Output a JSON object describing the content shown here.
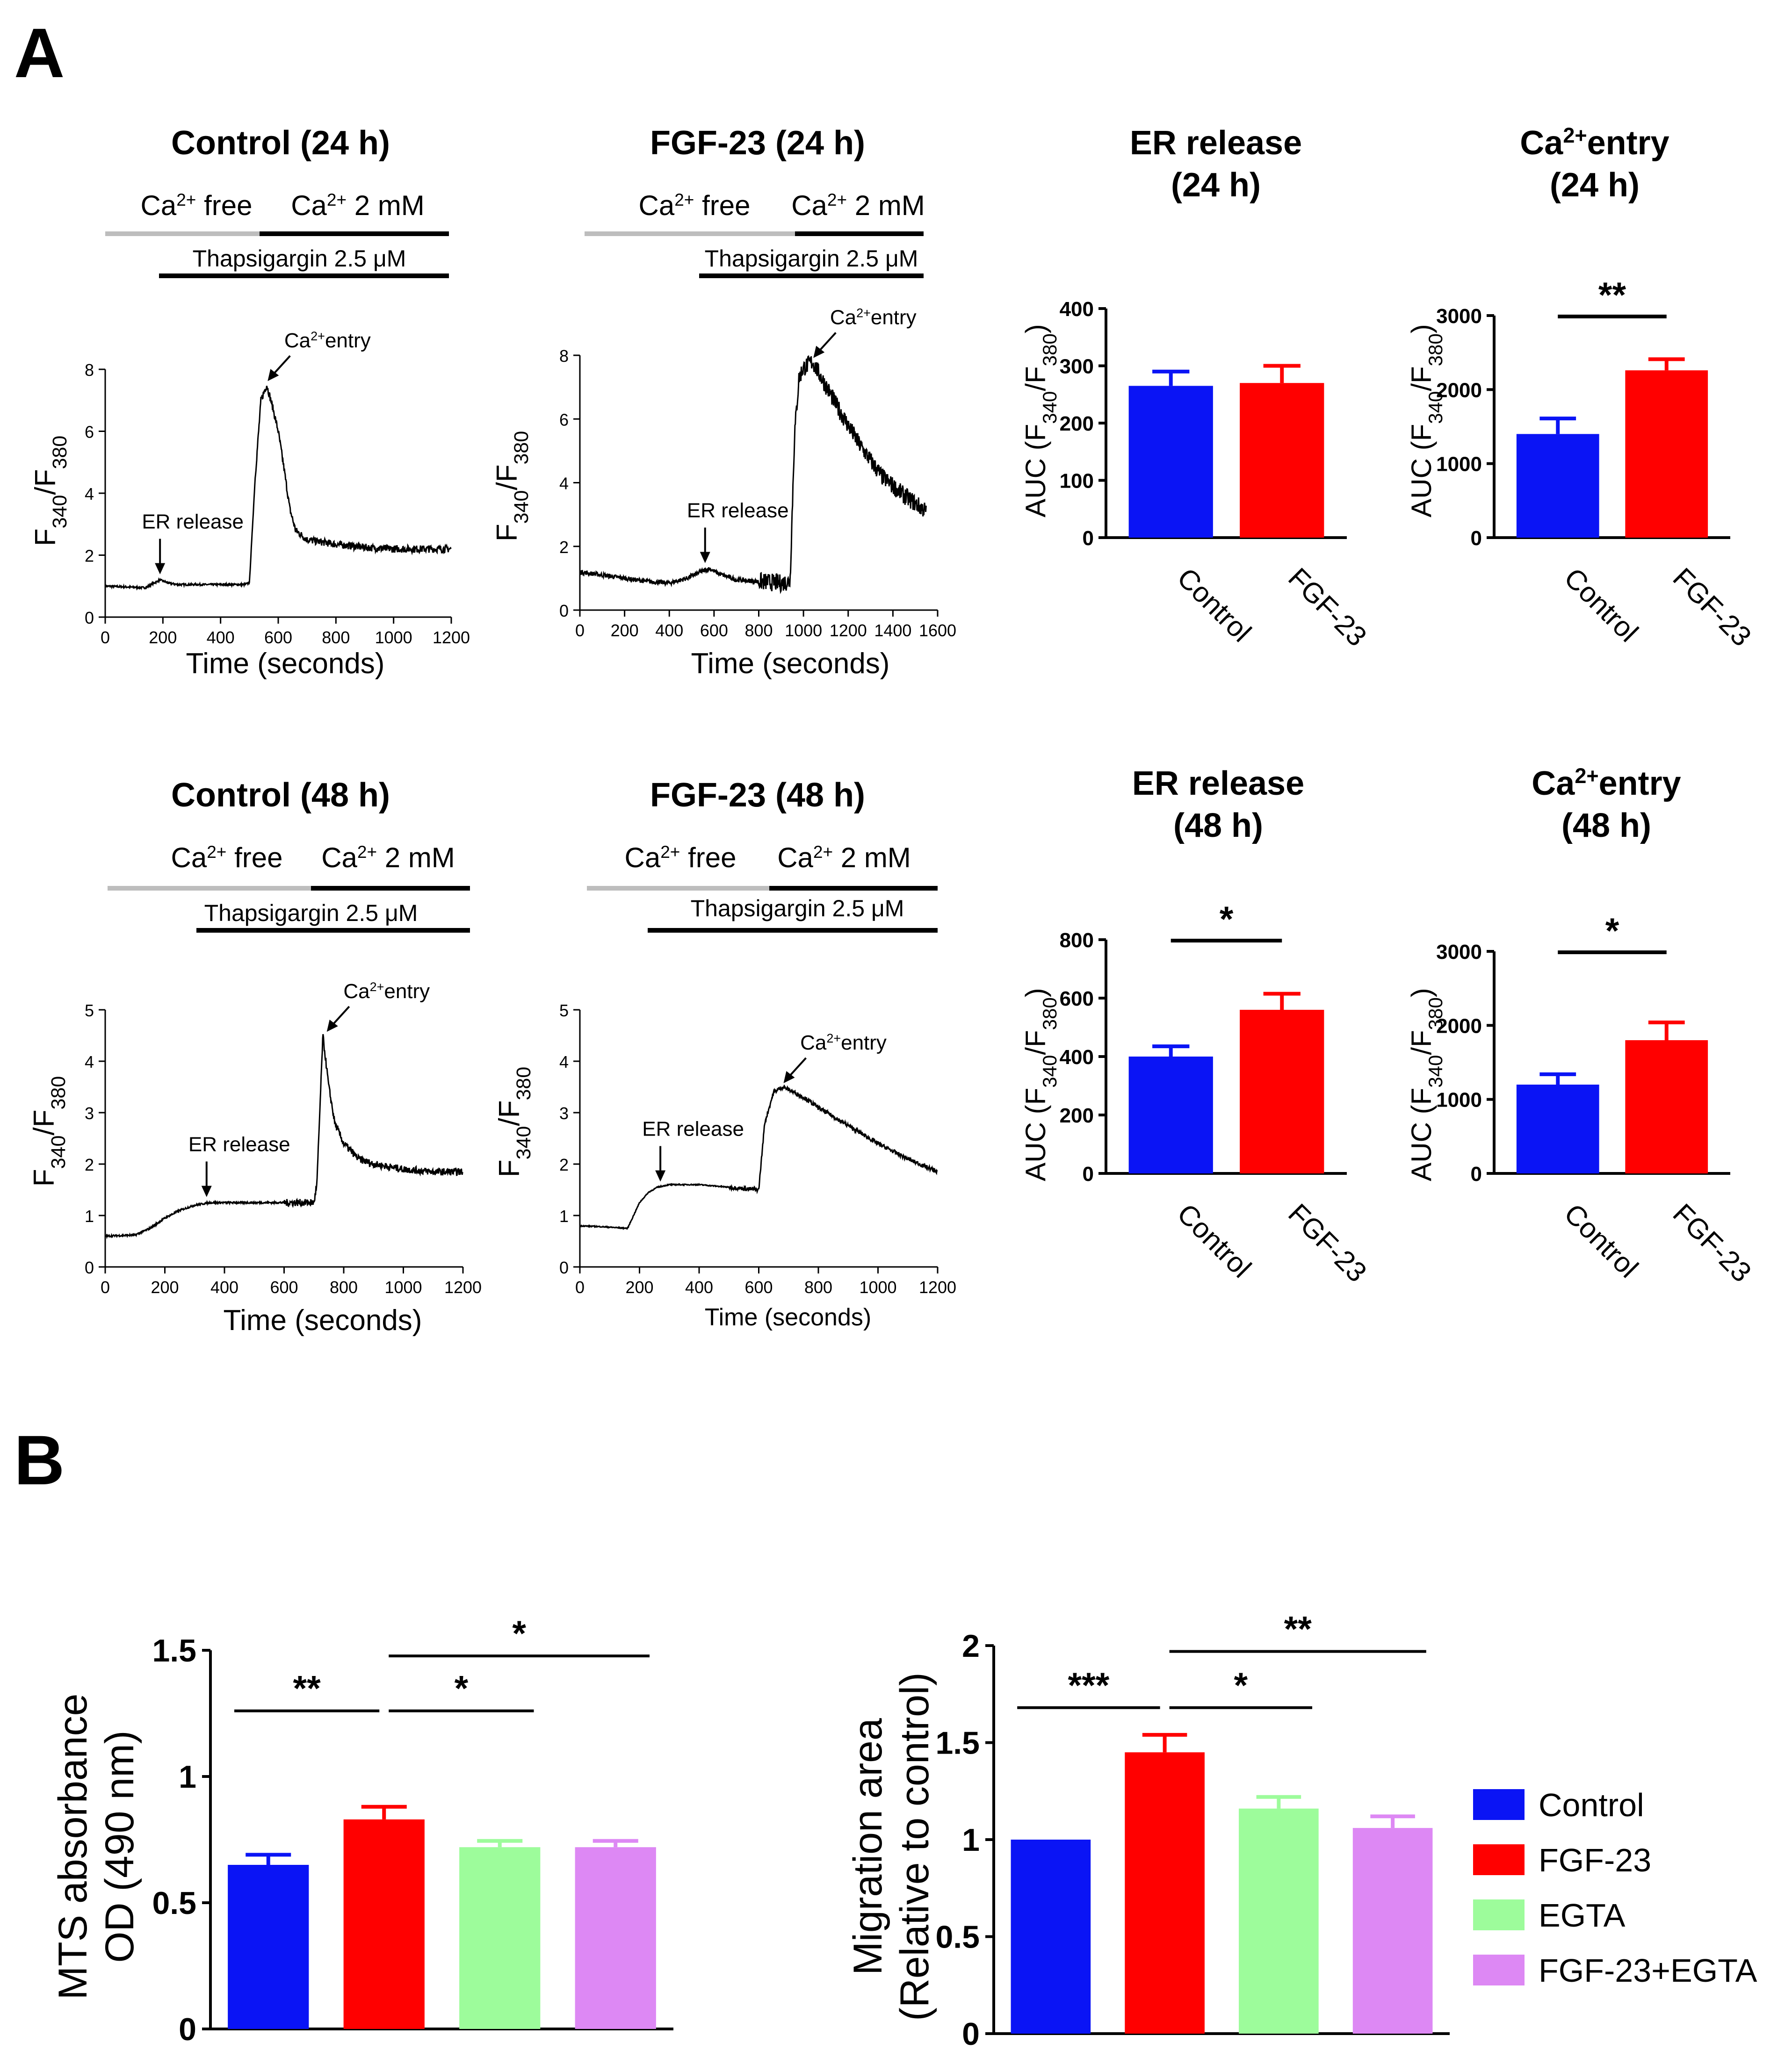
{
  "figure": {
    "panel_a_label": "A",
    "panel_b_label": "B",
    "traces": [
      {
        "title": "Control (24 h)",
        "bar_free": "Ca2+ free",
        "bar_ca": "Ca2+ 2 mM",
        "bar_thaps": "Thapsigargin 2.5 μM",
        "ylabel": "F340/F380",
        "xlabel": "Time (seconds)",
        "ann_er": "ER release",
        "ann_ca": "Ca2+entry"
      },
      {
        "title": "FGF-23 (24 h)",
        "bar_free": "Ca2+ free",
        "bar_ca": "Ca2+ 2 mM",
        "bar_thaps": "Thapsigargin 2.5 μM",
        "ylabel": "F340/F380",
        "xlabel": "Time (seconds)",
        "ann_er": "ER release",
        "ann_ca": "Ca2+entry"
      },
      {
        "title": "Control (48 h)",
        "bar_free": "Ca2+ free",
        "bar_ca": "Ca2+ 2 mM",
        "bar_thaps": "Thapsigargin 2.5 μM",
        "ylabel": "F340/F380",
        "xlabel": "Time (seconds)",
        "ann_er": "ER release",
        "ann_ca": "Ca2+entry"
      },
      {
        "title": "FGF-23 (48 h)",
        "bar_free": "Ca2+ free",
        "bar_ca": "Ca2+ 2 mM",
        "bar_thaps": "Thapsigargin 2.5 μM",
        "ylabel": "F340/F380",
        "xlabel": "Time (seconds)",
        "ann_er": "ER release",
        "ann_ca": "Ca2+entry"
      }
    ],
    "auc": [
      {
        "title1": "ER release",
        "title2": "(24 h)",
        "ylabel": "AUC (F340/F380)",
        "sig": ""
      },
      {
        "title1": "Ca2+entry",
        "title2": "(24 h)",
        "ylabel": "AUC (F340/F380)",
        "sig": "**"
      },
      {
        "title1": "ER release",
        "title2": "(48 h)",
        "ylabel": "AUC (F340/F380)",
        "sig": "*"
      },
      {
        "title1": "Ca2+entry",
        "title2": "(48 h)",
        "ylabel": "AUC (F340/F380)",
        "sig": "*"
      }
    ],
    "b_charts": [
      {
        "ylabel1": "MTS absorbance",
        "ylabel2": "OD (490 nm)",
        "sig": [
          "**",
          "*",
          "*"
        ]
      },
      {
        "ylabel1": "Migration area",
        "ylabel2": "(Relative to control)",
        "sig": [
          "***",
          "*",
          "**"
        ]
      }
    ],
    "legend": [
      "Control",
      "FGF-23",
      "EGTA",
      "FGF-23+EGTA"
    ]
  },
  "colors": {
    "control": "#0a14f5",
    "fgf23": "#ff0000",
    "egta": "#9dfc9b",
    "fgf23_egta": "#dd88f4",
    "gray_bar": "#bdbdbd",
    "ink": "#000000"
  },
  "chart_data": [
    {
      "type": "line",
      "title": "Control (24 h)",
      "xlabel": "Time (seconds)",
      "ylabel": "F340/F380",
      "xlim": [
        0,
        1200
      ],
      "ylim": [
        0,
        8
      ],
      "xticks": [
        0,
        200,
        400,
        600,
        800,
        1000,
        1200
      ],
      "yticks": [
        0,
        2,
        4,
        6,
        8
      ],
      "x": [
        0,
        140,
        170,
        190,
        220,
        250,
        300,
        400,
        480,
        500,
        520,
        540,
        560,
        580,
        600,
        620,
        640,
        660,
        700,
        800,
        900,
        1000,
        1100,
        1200
      ],
      "y": [
        1.0,
        0.95,
        1.1,
        1.2,
        1.1,
        1.05,
        1.05,
        1.05,
        1.05,
        1.1,
        4.5,
        7.0,
        7.5,
        6.8,
        6.0,
        4.8,
        3.5,
        2.8,
        2.5,
        2.35,
        2.25,
        2.2,
        2.2,
        2.2
      ],
      "noise": 0.12,
      "annotations": [
        {
          "text": "ER release",
          "x": 190,
          "y": 1.2
        },
        {
          "text": "Ca2+entry",
          "x": 560,
          "y": 7.5
        }
      ]
    },
    {
      "type": "line",
      "title": "FGF-23 (24 h)",
      "xlabel": "Time (seconds)",
      "ylabel": "F340/F380",
      "xlim": [
        0,
        1600
      ],
      "ylim": [
        0,
        8
      ],
      "xticks": [
        0,
        200,
        400,
        600,
        800,
        1000,
        1200,
        1400,
        1600
      ],
      "yticks": [
        0,
        2,
        4,
        6,
        8
      ],
      "x": [
        0,
        100,
        200,
        300,
        400,
        480,
        540,
        580,
        620,
        700,
        800,
        900,
        940,
        960,
        980,
        1000,
        1040,
        1080,
        1150,
        1250,
        1350,
        1450,
        1550
      ],
      "y": [
        1.2,
        1.1,
        1.0,
        0.9,
        0.85,
        1.0,
        1.2,
        1.3,
        1.15,
        0.95,
        0.9,
        0.85,
        0.9,
        5.5,
        7.3,
        7.6,
        7.8,
        7.3,
        6.4,
        5.2,
        4.2,
        3.6,
        3.1
      ],
      "noise": 0.28,
      "annotations": [
        {
          "text": "ER release",
          "x": 560,
          "y": 1.3
        },
        {
          "text": "Ca2+entry",
          "x": 1040,
          "y": 7.8
        }
      ]
    },
    {
      "type": "line",
      "title": "Control (48 h)",
      "xlabel": "Time (seconds)",
      "ylabel": "F340/F380",
      "xlim": [
        0,
        1200
      ],
      "ylim": [
        0,
        5
      ],
      "xticks": [
        0,
        200,
        400,
        600,
        800,
        1000,
        1200
      ],
      "yticks": [
        0,
        1,
        2,
        3,
        4,
        5
      ],
      "x": [
        0,
        100,
        150,
        200,
        250,
        300,
        350,
        400,
        500,
        600,
        700,
        710,
        730,
        750,
        770,
        800,
        850,
        900,
        1000,
        1100,
        1200
      ],
      "y": [
        0.6,
        0.62,
        0.75,
        0.95,
        1.1,
        1.2,
        1.25,
        1.25,
        1.25,
        1.25,
        1.25,
        1.6,
        4.5,
        3.5,
        2.8,
        2.4,
        2.1,
        2.0,
        1.9,
        1.85,
        1.85
      ],
      "noise": 0.07,
      "annotations": [
        {
          "text": "ER release",
          "x": 340,
          "y": 1.25
        },
        {
          "text": "Ca2+entry",
          "x": 740,
          "y": 4.5
        }
      ]
    },
    {
      "type": "line",
      "title": "FGF-23 (48 h)",
      "xlabel": "Time (seconds)",
      "ylabel": "F340/F380",
      "xlim": [
        0,
        1200
      ],
      "ylim": [
        0,
        5
      ],
      "xticks": [
        0,
        200,
        400,
        600,
        800,
        1000,
        1200
      ],
      "yticks": [
        0,
        1,
        2,
        3,
        4,
        5
      ],
      "x": [
        0,
        80,
        160,
        180,
        200,
        230,
        260,
        300,
        400,
        500,
        600,
        620,
        650,
        680,
        700,
        750,
        800,
        900,
        1000,
        1100,
        1200
      ],
      "y": [
        0.8,
        0.78,
        0.75,
        1.0,
        1.25,
        1.45,
        1.55,
        1.6,
        1.6,
        1.55,
        1.5,
        2.8,
        3.4,
        3.5,
        3.45,
        3.3,
        3.1,
        2.75,
        2.4,
        2.1,
        1.85
      ],
      "noise": 0.04,
      "annotations": [
        {
          "text": "ER release",
          "x": 270,
          "y": 1.55
        },
        {
          "text": "Ca2+entry",
          "x": 680,
          "y": 3.5
        }
      ]
    },
    {
      "type": "bar",
      "title": "ER release (24 h)",
      "ylabel": "AUC (F340/F380)",
      "categories": [
        "Control",
        "FGF-23"
      ],
      "values": [
        265,
        270
      ],
      "errors": [
        25,
        30
      ],
      "ylim": [
        0,
        400
      ],
      "yticks": [
        0,
        100,
        200,
        300,
        400
      ]
    },
    {
      "type": "bar",
      "title": "Ca2+entry (24 h)",
      "ylabel": "AUC (F340/F380)",
      "categories": [
        "Control",
        "FGF-23"
      ],
      "values": [
        1400,
        2260
      ],
      "errors": [
        210,
        150
      ],
      "ylim": [
        0,
        3000
      ],
      "yticks": [
        0,
        1000,
        2000,
        3000
      ],
      "significance": [
        {
          "from": 0,
          "to": 1,
          "label": "**"
        }
      ]
    },
    {
      "type": "bar",
      "title": "ER release (48 h)",
      "ylabel": "AUC (F340/F380)",
      "categories": [
        "Control",
        "FGF-23"
      ],
      "values": [
        400,
        560
      ],
      "errors": [
        35,
        55
      ],
      "ylim": [
        0,
        800
      ],
      "yticks": [
        0,
        200,
        400,
        600,
        800
      ],
      "significance": [
        {
          "from": 0,
          "to": 1,
          "label": "*"
        }
      ]
    },
    {
      "type": "bar",
      "title": "Ca2+entry (48 h)",
      "ylabel": "AUC (F340/F380)",
      "categories": [
        "Control",
        "FGF-23"
      ],
      "values": [
        1200,
        1800
      ],
      "errors": [
        140,
        240
      ],
      "ylim": [
        0,
        3000
      ],
      "yticks": [
        0,
        1000,
        2000,
        3000
      ],
      "significance": [
        {
          "from": 0,
          "to": 1,
          "label": "*"
        }
      ]
    },
    {
      "type": "bar",
      "title": "",
      "ylabel": "MTS absorbance OD (490 nm)",
      "categories": [
        "Control",
        "FGF-23",
        "EGTA",
        "FGF-23+EGTA"
      ],
      "values": [
        0.65,
        0.83,
        0.72,
        0.72
      ],
      "errors": [
        0.04,
        0.05,
        0.025,
        0.025
      ],
      "ylim": [
        0,
        1.5
      ],
      "yticks": [
        0,
        0.5,
        1.0,
        1.5
      ],
      "significance": [
        {
          "from": 0,
          "to": 1,
          "label": "**"
        },
        {
          "from": 1,
          "to": 2,
          "label": "*"
        },
        {
          "from": 1,
          "to": 3,
          "label": "*"
        }
      ]
    },
    {
      "type": "bar",
      "title": "",
      "ylabel": "Migration area (Relative to control)",
      "categories": [
        "Control",
        "FGF-23",
        "EGTA",
        "FGF-23+EGTA"
      ],
      "values": [
        1.0,
        1.45,
        1.16,
        1.06
      ],
      "errors": [
        0,
        0.09,
        0.06,
        0.06
      ],
      "ylim": [
        0,
        2.0
      ],
      "yticks": [
        0,
        0.5,
        1.0,
        1.5,
        2.0
      ],
      "significance": [
        {
          "from": 0,
          "to": 1,
          "label": "***"
        },
        {
          "from": 1,
          "to": 2,
          "label": "*"
        },
        {
          "from": 1,
          "to": 3,
          "label": "**"
        }
      ]
    }
  ]
}
